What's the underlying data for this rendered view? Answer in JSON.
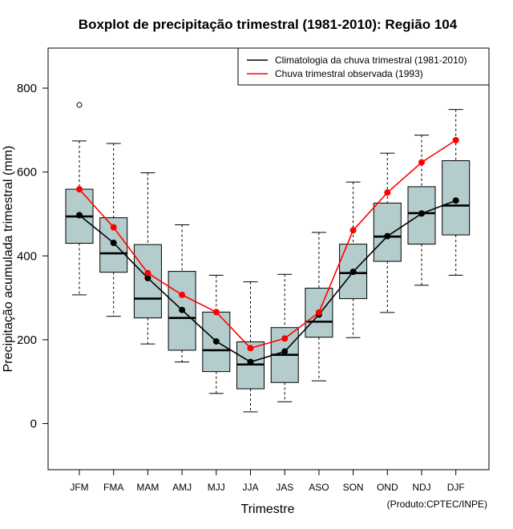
{
  "chart_data": {
    "type": "boxplot",
    "title": "Boxplot de precipitação trimestral (1981-2010): Região 104",
    "xlabel": "Trimestre",
    "ylabel": "Precipitação acumulada trimestral (mm)",
    "credit": "(Produto:CPTEC/INPE)",
    "ylim": [
      -110,
      900
    ],
    "yticks": [
      0,
      200,
      400,
      600,
      800
    ],
    "categories": [
      "JFM",
      "FMA",
      "MAM",
      "AMJ",
      "MJJ",
      "JJA",
      "JAS",
      "ASO",
      "SON",
      "OND",
      "NDJ",
      "DJF"
    ],
    "boxes": [
      {
        "whisker_low": 307,
        "q1": 430,
        "median": 494,
        "q3": 559,
        "whisker_high": 674,
        "outliers": [
          760
        ]
      },
      {
        "whisker_low": 256,
        "q1": 361,
        "median": 406,
        "q3": 491,
        "whisker_high": 668,
        "outliers": []
      },
      {
        "whisker_low": 190,
        "q1": 252,
        "median": 298,
        "q3": 427,
        "whisker_high": 598,
        "outliers": []
      },
      {
        "whisker_low": 147,
        "q1": 175,
        "median": 252,
        "q3": 363,
        "whisker_high": 474,
        "outliers": []
      },
      {
        "whisker_low": 72,
        "q1": 124,
        "median": 175,
        "q3": 266,
        "whisker_high": 354,
        "outliers": []
      },
      {
        "whisker_low": 28,
        "q1": 83,
        "median": 141,
        "q3": 195,
        "whisker_high": 338,
        "outliers": []
      },
      {
        "whisker_low": 52,
        "q1": 98,
        "median": 164,
        "q3": 229,
        "whisker_high": 356,
        "outliers": []
      },
      {
        "whisker_low": 102,
        "q1": 206,
        "median": 243,
        "q3": 323,
        "whisker_high": 456,
        "outliers": []
      },
      {
        "whisker_low": 205,
        "q1": 298,
        "median": 359,
        "q3": 428,
        "whisker_high": 576,
        "outliers": []
      },
      {
        "whisker_low": 265,
        "q1": 387,
        "median": 446,
        "q3": 526,
        "whisker_high": 645,
        "outliers": []
      },
      {
        "whisker_low": 330,
        "q1": 428,
        "median": 502,
        "q3": 565,
        "whisker_high": 688,
        "outliers": []
      },
      {
        "whisker_low": 354,
        "q1": 450,
        "median": 520,
        "q3": 627,
        "whisker_high": 749,
        "outliers": []
      }
    ],
    "series": [
      {
        "name": "Climatologia da chuva trimestral (1981-2010)",
        "color": "#000000",
        "values": [
          497,
          431,
          347,
          271,
          196,
          147,
          172,
          260,
          362,
          447,
          501,
          532
        ]
      },
      {
        "name": "Chuva trimestral observada (1993)",
        "color": "#ff0000",
        "values": [
          559,
          468,
          359,
          307,
          266,
          180,
          203,
          265,
          461,
          551,
          623,
          676
        ]
      }
    ],
    "box_fill": "#b4cccc",
    "legend_position": "top-right"
  }
}
